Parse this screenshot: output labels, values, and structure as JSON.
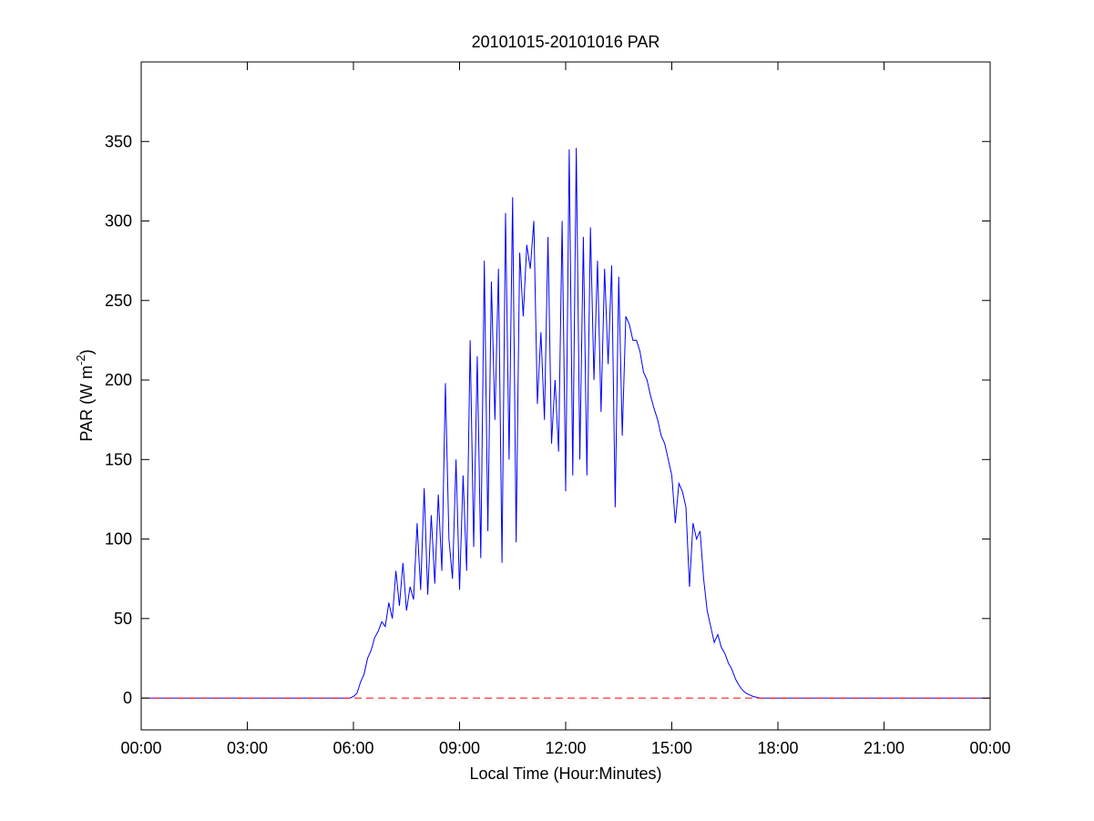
{
  "chart_data": {
    "type": "line",
    "title": "20101015-20101016 PAR",
    "xlabel": "Local Time (Hour:Minutes)",
    "ylabel": {
      "text": "PAR (W m",
      "superscript": "-2",
      "tail": ")"
    },
    "x": [
      0,
      5.8,
      5.9,
      6.0,
      6.1,
      6.2,
      6.3,
      6.4,
      6.5,
      6.6,
      6.7,
      6.8,
      6.9,
      7.0,
      7.1,
      7.2,
      7.3,
      7.4,
      7.5,
      7.6,
      7.7,
      7.8,
      7.9,
      8.0,
      8.1,
      8.2,
      8.3,
      8.4,
      8.5,
      8.6,
      8.7,
      8.8,
      8.9,
      9.0,
      9.1,
      9.2,
      9.3,
      9.4,
      9.5,
      9.6,
      9.7,
      9.8,
      9.9,
      10.0,
      10.1,
      10.2,
      10.3,
      10.4,
      10.5,
      10.6,
      10.7,
      10.8,
      10.9,
      11.0,
      11.1,
      11.2,
      11.3,
      11.4,
      11.5,
      11.6,
      11.7,
      11.8,
      11.9,
      12.0,
      12.1,
      12.2,
      12.3,
      12.4,
      12.5,
      12.6,
      12.7,
      12.8,
      12.9,
      13.0,
      13.1,
      13.2,
      13.3,
      13.4,
      13.5,
      13.6,
      13.7,
      13.8,
      13.9,
      14.0,
      14.1,
      14.2,
      14.3,
      14.4,
      14.5,
      14.6,
      14.7,
      14.8,
      14.9,
      15.0,
      15.1,
      15.2,
      15.3,
      15.4,
      15.5,
      15.6,
      15.7,
      15.8,
      15.9,
      16.0,
      16.1,
      16.2,
      16.3,
      16.4,
      16.5,
      16.6,
      16.7,
      16.8,
      16.9,
      17.0,
      17.1,
      17.2,
      17.3,
      17.4,
      17.5,
      24
    ],
    "values": [
      0,
      0,
      0,
      1,
      3,
      10,
      15,
      25,
      30,
      38,
      42,
      48,
      45,
      60,
      50,
      80,
      58,
      85,
      55,
      70,
      62,
      110,
      68,
      132,
      65,
      115,
      72,
      128,
      80,
      198,
      100,
      75,
      150,
      68,
      140,
      80,
      225,
      95,
      215,
      88,
      275,
      105,
      262,
      175,
      270,
      85,
      305,
      150,
      315,
      98,
      280,
      240,
      285,
      270,
      300,
      185,
      230,
      175,
      290,
      160,
      200,
      155,
      300,
      130,
      345,
      140,
      346,
      150,
      290,
      140,
      296,
      200,
      275,
      180,
      270,
      210,
      272,
      120,
      265,
      165,
      240,
      235,
      225,
      225,
      218,
      205,
      200,
      190,
      182,
      175,
      165,
      160,
      150,
      140,
      110,
      135,
      130,
      120,
      70,
      110,
      100,
      105,
      75,
      55,
      45,
      35,
      40,
      32,
      28,
      22,
      18,
      12,
      8,
      5,
      3,
      2,
      1,
      0.5,
      0,
      0
    ],
    "color": "#0000ff",
    "reference_line": {
      "value": 0,
      "color": "#ff0000"
    },
    "xlim": [
      0,
      24
    ],
    "xticks": [
      {
        "value": 0,
        "label": "00:00"
      },
      {
        "value": 3,
        "label": "03:00"
      },
      {
        "value": 6,
        "label": "06:00"
      },
      {
        "value": 9,
        "label": "09:00"
      },
      {
        "value": 12,
        "label": "12:00"
      },
      {
        "value": 15,
        "label": "15:00"
      },
      {
        "value": 18,
        "label": "18:00"
      },
      {
        "value": 21,
        "label": "21:00"
      },
      {
        "value": 24,
        "label": "00:00"
      }
    ],
    "ylim": [
      -20,
      400
    ],
    "yticks": [
      0,
      50,
      100,
      150,
      200,
      250,
      300,
      350
    ]
  }
}
